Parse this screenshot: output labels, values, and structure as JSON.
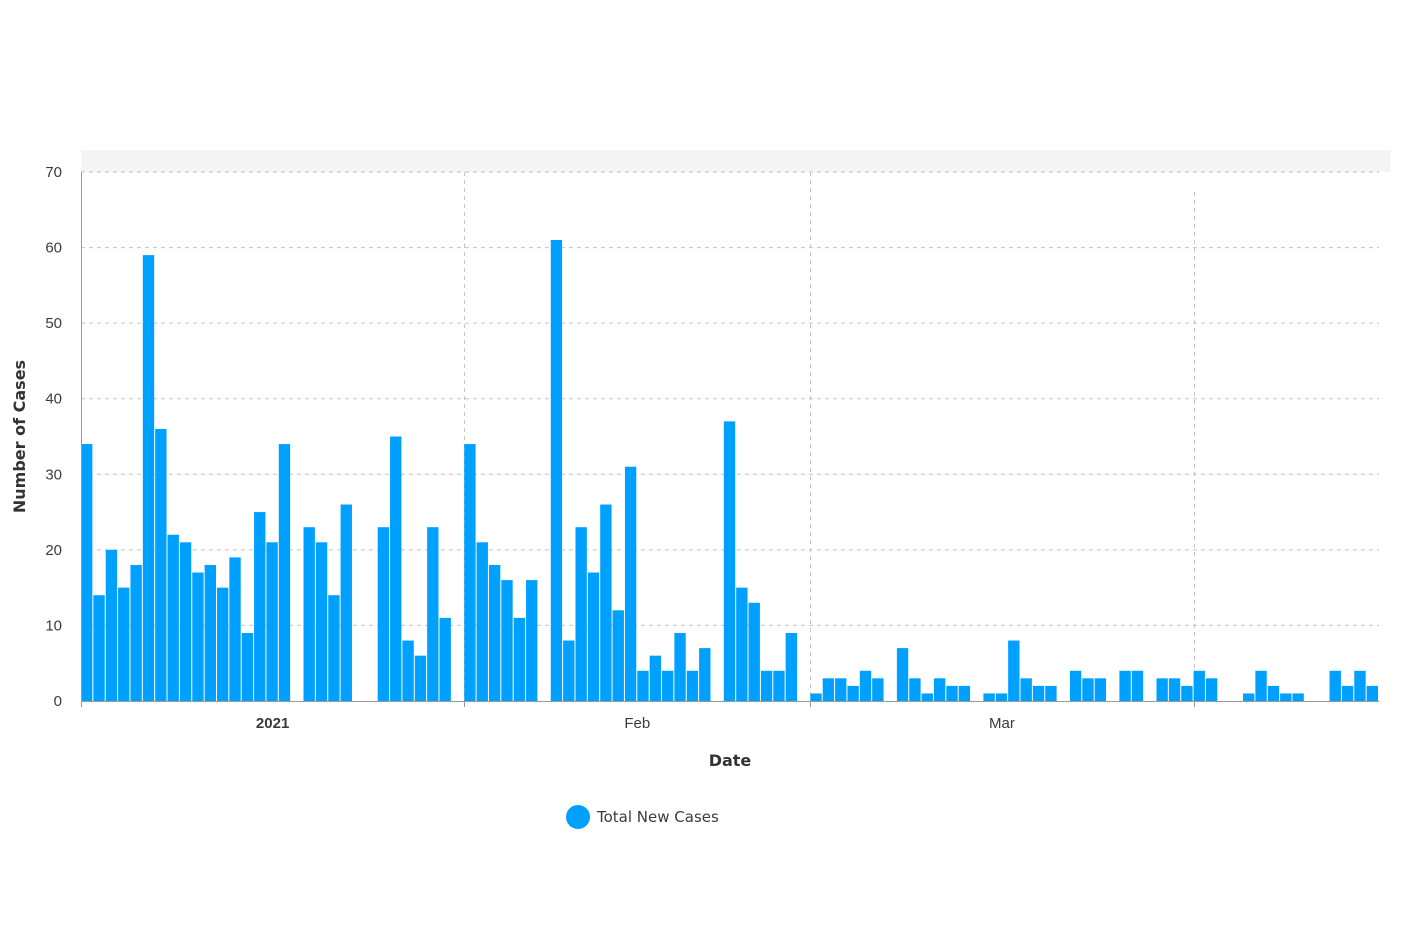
{
  "colors": {
    "bar": "#00a0ff",
    "grid": "#c4c4c4",
    "axis": "#9a9a9a",
    "header_band": "#f4f4f4"
  },
  "chart_data": {
    "type": "bar",
    "xlabel": "Date",
    "ylabel": "Number of Cases",
    "ylim": [
      0,
      70
    ],
    "y_ticks": [
      0,
      10,
      20,
      30,
      40,
      50,
      60,
      70
    ],
    "x_tick_labels": [
      {
        "date": "2021-01-01",
        "label": "2021",
        "bold": true
      },
      {
        "date": "2021-02-01",
        "label": "Feb",
        "bold": false
      },
      {
        "date": "2021-03-01",
        "label": "Mar",
        "bold": false
      }
    ],
    "x_gridline_dates": [
      "2021-02-01",
      "2021-03-01",
      "2021-04-01"
    ],
    "x_range": [
      "2021-01-01",
      "2021-04-16"
    ],
    "grid": true,
    "legend_position": "bottom-center",
    "series": [
      {
        "name": "Total New Cases",
        "points": [
          [
            "2021-01-01",
            34
          ],
          [
            "2021-01-02",
            14
          ],
          [
            "2021-01-03",
            20
          ],
          [
            "2021-01-04",
            15
          ],
          [
            "2021-01-05",
            18
          ],
          [
            "2021-01-06",
            59
          ],
          [
            "2021-01-07",
            36
          ],
          [
            "2021-01-08",
            22
          ],
          [
            "2021-01-09",
            21
          ],
          [
            "2021-01-10",
            17
          ],
          [
            "2021-01-11",
            18
          ],
          [
            "2021-01-12",
            15
          ],
          [
            "2021-01-13",
            19
          ],
          [
            "2021-01-14",
            9
          ],
          [
            "2021-01-15",
            25
          ],
          [
            "2021-01-16",
            21
          ],
          [
            "2021-01-17",
            34
          ],
          [
            "2021-01-19",
            23
          ],
          [
            "2021-01-20",
            21
          ],
          [
            "2021-01-21",
            14
          ],
          [
            "2021-01-22",
            26
          ],
          [
            "2021-01-25",
            23
          ],
          [
            "2021-01-26",
            35
          ],
          [
            "2021-01-27",
            8
          ],
          [
            "2021-01-28",
            6
          ],
          [
            "2021-01-29",
            23
          ],
          [
            "2021-01-30",
            11
          ],
          [
            "2021-02-01",
            34
          ],
          [
            "2021-02-02",
            21
          ],
          [
            "2021-02-03",
            18
          ],
          [
            "2021-02-04",
            16
          ],
          [
            "2021-02-05",
            11
          ],
          [
            "2021-02-06",
            16
          ],
          [
            "2021-02-08",
            61
          ],
          [
            "2021-02-09",
            8
          ],
          [
            "2021-02-10",
            23
          ],
          [
            "2021-02-11",
            17
          ],
          [
            "2021-02-12",
            26
          ],
          [
            "2021-02-13",
            12
          ],
          [
            "2021-02-14",
            31
          ],
          [
            "2021-02-15",
            4
          ],
          [
            "2021-02-16",
            6
          ],
          [
            "2021-02-17",
            4
          ],
          [
            "2021-02-18",
            9
          ],
          [
            "2021-02-19",
            4
          ],
          [
            "2021-02-20",
            7
          ],
          [
            "2021-02-22",
            37
          ],
          [
            "2021-02-23",
            15
          ],
          [
            "2021-02-24",
            13
          ],
          [
            "2021-02-25",
            4
          ],
          [
            "2021-02-26",
            4
          ],
          [
            "2021-02-27",
            9
          ],
          [
            "2021-03-01",
            1
          ],
          [
            "2021-03-02",
            3
          ],
          [
            "2021-03-03",
            3
          ],
          [
            "2021-03-04",
            2
          ],
          [
            "2021-03-05",
            4
          ],
          [
            "2021-03-06",
            3
          ],
          [
            "2021-03-08",
            7
          ],
          [
            "2021-03-09",
            3
          ],
          [
            "2021-03-10",
            1
          ],
          [
            "2021-03-11",
            3
          ],
          [
            "2021-03-12",
            2
          ],
          [
            "2021-03-13",
            2
          ],
          [
            "2021-03-15",
            1
          ],
          [
            "2021-03-16",
            1
          ],
          [
            "2021-03-17",
            8
          ],
          [
            "2021-03-18",
            3
          ],
          [
            "2021-03-19",
            2
          ],
          [
            "2021-03-20",
            2
          ],
          [
            "2021-03-22",
            4
          ],
          [
            "2021-03-23",
            3
          ],
          [
            "2021-03-24",
            3
          ],
          [
            "2021-03-25",
            0
          ],
          [
            "2021-03-26",
            4
          ],
          [
            "2021-03-27",
            4
          ],
          [
            "2021-03-29",
            3
          ],
          [
            "2021-03-30",
            3
          ],
          [
            "2021-03-31",
            2
          ],
          [
            "2021-04-01",
            4
          ],
          [
            "2021-04-02",
            3
          ],
          [
            "2021-04-03",
            0
          ],
          [
            "2021-04-05",
            1
          ],
          [
            "2021-04-06",
            4
          ],
          [
            "2021-04-07",
            2
          ],
          [
            "2021-04-08",
            1
          ],
          [
            "2021-04-09",
            1
          ],
          [
            "2021-04-12",
            4
          ],
          [
            "2021-04-13",
            2
          ],
          [
            "2021-04-14",
            4
          ],
          [
            "2021-04-15",
            2
          ]
        ]
      }
    ]
  },
  "legend": {
    "items": [
      {
        "label": "Total New Cases"
      }
    ]
  }
}
